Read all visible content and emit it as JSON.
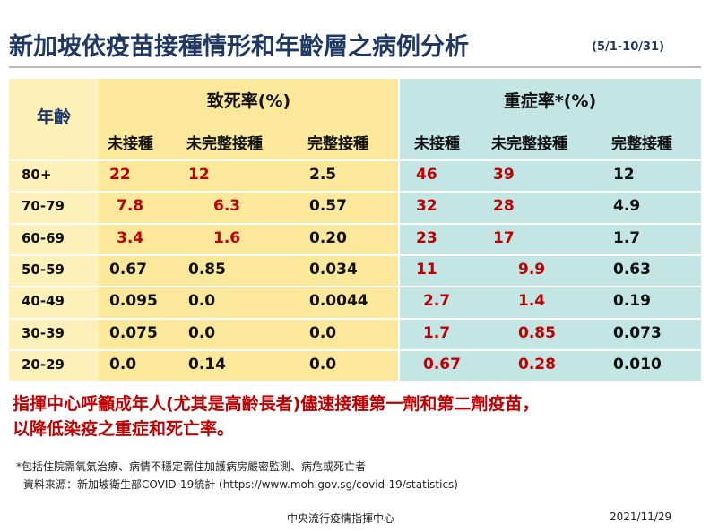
{
  "header": {
    "title": "新加坡依疫苗接種情形和年齡層之病例分析",
    "period": "(5/1-10/31)"
  },
  "table": {
    "age_header": "年齡",
    "groups": [
      "致死率(%)",
      "重症率*(%)"
    ],
    "subheaders": [
      "未接種",
      "未完整接種",
      "完整接種",
      "未接種",
      "未完整接種",
      "完整接種"
    ],
    "rows": [
      [
        "80+",
        "22",
        "12",
        "2.5",
        "46",
        "39",
        "12"
      ],
      [
        "70-79",
        "7.8",
        "6.3",
        "0.57",
        "32",
        "28",
        "4.9"
      ],
      [
        "60-69",
        "3.4",
        "1.6",
        "0.20",
        "23",
        "17",
        "1.7"
      ],
      [
        "50-59",
        "0.67",
        "0.85",
        "0.034",
        "11",
        "9.9",
        "0.63"
      ],
      [
        "40-49",
        "0.095",
        "0.0",
        "0.0044",
        "2.7",
        "1.4",
        "0.19"
      ],
      [
        "30-39",
        "0.075",
        "0.0",
        "0.0",
        "1.7",
        "0.85",
        "0.073"
      ],
      [
        "20-29",
        "0.0",
        "0.14",
        "0.0",
        "0.67",
        "0.28",
        "0.010"
      ]
    ]
  },
  "message": [
    "指揮中心呼籲成年人(尤其是高齡長者)儘速接種第一劑和第二劑疫苗，",
    "以降低染疫之重症和死亡率。"
  ],
  "notes": [
    "*包括住院需氧氣治療、病情不穩定需住加護病房嚴密監測、病危或死亡者",
    "資料來源：新加坡衛生部COVID-19統計 (https://www.moh.gov.sg/covid-19/statistics)"
  ],
  "footer": {
    "org": "中央流行疫情指揮中心",
    "date": "2021/11/29"
  }
}
